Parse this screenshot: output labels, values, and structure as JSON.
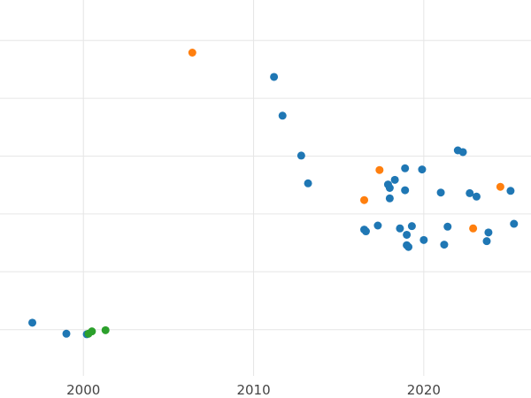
{
  "chart_data": {
    "type": "scatter",
    "title": "",
    "xlabel": "",
    "ylabel": "",
    "xlim": [
      1995.1,
      2026.3
    ],
    "ylim": [
      0.0,
      6.5
    ],
    "x_ticks": [
      2000,
      2010,
      2020
    ],
    "x_tick_labels": [
      "2000",
      "2010",
      "2020"
    ],
    "y_grid": [
      0.8,
      1.8,
      2.8,
      3.8,
      4.8,
      5.8,
      6.8
    ],
    "grid": true,
    "legend": null,
    "series": [
      {
        "color": "#1f77b4",
        "points": [
          {
            "x": 1997.0,
            "y": 0.92
          },
          {
            "x": 1999.0,
            "y": 0.73
          },
          {
            "x": 2000.2,
            "y": 0.72
          },
          {
            "x": 2011.2,
            "y": 5.17
          },
          {
            "x": 2011.7,
            "y": 4.5
          },
          {
            "x": 2012.8,
            "y": 3.81
          },
          {
            "x": 2013.2,
            "y": 3.33
          },
          {
            "x": 2016.5,
            "y": 2.53
          },
          {
            "x": 2016.6,
            "y": 2.5
          },
          {
            "x": 2017.3,
            "y": 2.6
          },
          {
            "x": 2017.9,
            "y": 3.31
          },
          {
            "x": 2018.0,
            "y": 3.25
          },
          {
            "x": 2018.0,
            "y": 3.07
          },
          {
            "x": 2018.3,
            "y": 3.39
          },
          {
            "x": 2018.6,
            "y": 2.55
          },
          {
            "x": 2018.9,
            "y": 3.21
          },
          {
            "x": 2018.9,
            "y": 3.59
          },
          {
            "x": 2019.0,
            "y": 2.44
          },
          {
            "x": 2019.0,
            "y": 2.26
          },
          {
            "x": 2019.1,
            "y": 2.23
          },
          {
            "x": 2019.3,
            "y": 2.59
          },
          {
            "x": 2019.9,
            "y": 3.57
          },
          {
            "x": 2020.0,
            "y": 2.35
          },
          {
            "x": 2021.0,
            "y": 3.17
          },
          {
            "x": 2021.2,
            "y": 2.27
          },
          {
            "x": 2021.4,
            "y": 2.58
          },
          {
            "x": 2022.0,
            "y": 3.9
          },
          {
            "x": 2022.3,
            "y": 3.87
          },
          {
            "x": 2022.7,
            "y": 3.16
          },
          {
            "x": 2023.1,
            "y": 3.1
          },
          {
            "x": 2023.7,
            "y": 2.33
          },
          {
            "x": 2023.8,
            "y": 2.48
          },
          {
            "x": 2025.1,
            "y": 3.2
          },
          {
            "x": 2025.3,
            "y": 2.63
          }
        ]
      },
      {
        "color": "#ff7f0e",
        "points": [
          {
            "x": 2006.4,
            "y": 5.59
          },
          {
            "x": 2016.5,
            "y": 3.04
          },
          {
            "x": 2017.4,
            "y": 3.56
          },
          {
            "x": 2022.9,
            "y": 2.55
          },
          {
            "x": 2024.5,
            "y": 3.27
          }
        ]
      },
      {
        "color": "#2ca02c",
        "points": [
          {
            "x": 2000.3,
            "y": 0.73
          },
          {
            "x": 2000.5,
            "y": 0.77
          },
          {
            "x": 2001.3,
            "y": 0.79
          }
        ]
      }
    ]
  }
}
